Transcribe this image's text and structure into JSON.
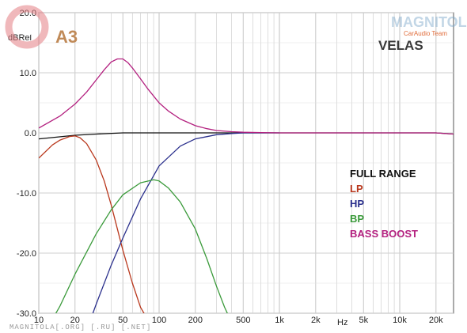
{
  "header": {
    "badge": "A3",
    "title": "VELAS",
    "brand_top": "MAGNITOLA",
    "brand_sub": "CarAudio Team"
  },
  "footer": {
    "watermark": "MAGNITOLA[.ORG] [.RU] [.NET]"
  },
  "colors": {
    "full_range": "#111111",
    "lp": "#b9371c",
    "hp": "#2a2f8c",
    "bp": "#3a9a3a",
    "bass_boost": "#b3207f",
    "grid": "#c8c8c8",
    "axis": "#444444"
  },
  "chart_data": {
    "type": "line",
    "xscale": "log",
    "xlim": [
      10,
      28000
    ],
    "ylim": [
      -30,
      20
    ],
    "grid": true,
    "legend_position": "right-middle",
    "ylabel": "dBRel",
    "xunit": "Hz",
    "yticks": [
      {
        "value": 20,
        "label": "20.0"
      },
      {
        "value": 10,
        "label": "10.0"
      },
      {
        "value": 0,
        "label": "0.0"
      },
      {
        "value": -10,
        "label": "-10.0"
      },
      {
        "value": -20,
        "label": "-20.0"
      },
      {
        "value": -30,
        "label": "-30.0"
      }
    ],
    "xticks": [
      {
        "value": 10,
        "label": "10"
      },
      {
        "value": 20,
        "label": "20"
      },
      {
        "value": 50,
        "label": "50"
      },
      {
        "value": 100,
        "label": "100"
      },
      {
        "value": 200,
        "label": "200"
      },
      {
        "value": 500,
        "label": "500"
      },
      {
        "value": 1000,
        "label": "1k"
      },
      {
        "value": 2000,
        "label": "2k"
      },
      {
        "value": 5000,
        "label": "5k"
      },
      {
        "value": 10000,
        "label": "10k"
      },
      {
        "value": 20000,
        "label": "20k"
      }
    ],
    "series": [
      {
        "name": "FULL RANGE",
        "color": "#111111",
        "x": [
          10,
          20,
          30,
          50,
          100,
          200,
          500,
          1000,
          2000,
          5000,
          10000,
          20000,
          28000
        ],
        "y": [
          -1.0,
          -0.4,
          -0.2,
          0.0,
          0.0,
          0.0,
          0.0,
          0.0,
          0.0,
          0.0,
          0.0,
          0.0,
          -0.2
        ]
      },
      {
        "name": "LP",
        "color": "#b9371c",
        "x": [
          10,
          13,
          15,
          18,
          20,
          22,
          25,
          30,
          35,
          40,
          50,
          60,
          70,
          80
        ],
        "y": [
          -4.2,
          -2.0,
          -1.2,
          -0.6,
          -0.5,
          -0.8,
          -1.8,
          -4.5,
          -8.0,
          -12.0,
          -19.5,
          -25.0,
          -29.0,
          -31.0
        ]
      },
      {
        "name": "HP",
        "color": "#2a2f8c",
        "x": [
          27,
          30,
          40,
          50,
          70,
          100,
          150,
          200,
          300,
          400,
          500,
          700,
          1000
        ],
        "y": [
          -31.0,
          -28.5,
          -22.0,
          -17.5,
          -11.0,
          -5.5,
          -2.2,
          -1.0,
          -0.3,
          -0.1,
          0.0,
          0.0,
          0.0
        ]
      },
      {
        "name": "BP",
        "color": "#3a9a3a",
        "x": [
          13,
          15,
          20,
          30,
          40,
          50,
          70,
          90,
          100,
          120,
          150,
          200,
          250,
          300,
          350,
          400,
          450
        ],
        "y": [
          -31.0,
          -28.8,
          -23.5,
          -16.8,
          -12.8,
          -10.3,
          -8.3,
          -7.8,
          -8.0,
          -9.2,
          -11.5,
          -16.0,
          -21.0,
          -25.5,
          -29.0,
          -31.5,
          -33.0
        ]
      },
      {
        "name": "BASS BOOST",
        "color": "#b3207f",
        "x": [
          10,
          15,
          20,
          25,
          30,
          35,
          40,
          45,
          50,
          55,
          60,
          70,
          80,
          100,
          120,
          150,
          200,
          250,
          300,
          400,
          500,
          700,
          1000,
          2000,
          5000,
          10000,
          20000,
          28000
        ],
        "y": [
          0.8,
          2.8,
          4.8,
          6.8,
          8.8,
          10.5,
          11.8,
          12.3,
          12.3,
          11.7,
          10.8,
          9.0,
          7.4,
          5.0,
          3.6,
          2.3,
          1.2,
          0.7,
          0.4,
          0.2,
          0.1,
          0.05,
          0.0,
          0.0,
          0.0,
          0.0,
          0.0,
          -0.2
        ]
      }
    ]
  }
}
